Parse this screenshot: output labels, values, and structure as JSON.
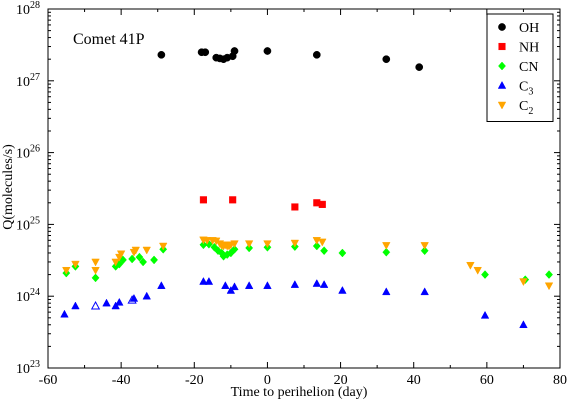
{
  "chart_data": {
    "type": "scatter",
    "title": "Comet 41P",
    "xlabel": "Time to perihelion (day)",
    "ylabel": "Q(molecules/s)",
    "xlim": [
      -60,
      80
    ],
    "ylim": [
      1e+23,
      1e+28
    ],
    "yscale": "log",
    "x_ticks": [
      -60,
      -40,
      -20,
      0,
      20,
      40,
      60,
      80
    ],
    "y_tick_exponents": [
      23,
      24,
      25,
      26,
      27,
      28
    ],
    "legend_position": "top-right",
    "series": [
      {
        "name": "OH",
        "subscript": "",
        "marker": "circle",
        "color": "#000000",
        "points": [
          {
            "x": -29,
            "y": 2.3e+27
          },
          {
            "x": -18,
            "y": 2.5e+27
          },
          {
            "x": -17,
            "y": 2.5e+27
          },
          {
            "x": -14,
            "y": 2.1e+27
          },
          {
            "x": -13,
            "y": 2.05e+27
          },
          {
            "x": -12,
            "y": 2e+27
          },
          {
            "x": -11,
            "y": 2.1e+27
          },
          {
            "x": -9.5,
            "y": 2.2e+27
          },
          {
            "x": -9,
            "y": 2.6e+27
          },
          {
            "x": 0,
            "y": 2.6e+27
          },
          {
            "x": 13.5,
            "y": 2.3e+27
          },
          {
            "x": 32.5,
            "y": 2e+27
          },
          {
            "x": 41.5,
            "y": 1.55e+27
          }
        ]
      },
      {
        "name": "NH",
        "subscript": "",
        "marker": "square",
        "color": "#ff0000",
        "points": [
          {
            "x": -17.5,
            "y": 2.2e+25
          },
          {
            "x": -9.5,
            "y": 2.2e+25
          },
          {
            "x": 7.5,
            "y": 1.75e+25
          },
          {
            "x": 13.5,
            "y": 2e+25
          },
          {
            "x": 15.0,
            "y": 1.9e+25
          }
        ]
      },
      {
        "name": "CN",
        "subscript": "",
        "marker": "diamond",
        "color": "#00ff00",
        "points": [
          {
            "x": -55,
            "y": 2.1e+24
          },
          {
            "x": -52.5,
            "y": 2.6e+24
          },
          {
            "x": -47,
            "y": 1.8e+24
          },
          {
            "x": -41.5,
            "y": 2.6e+24
          },
          {
            "x": -40.5,
            "y": 2.8e+24
          },
          {
            "x": -39.5,
            "y": 3.2e+24
          },
          {
            "x": -37,
            "y": 3.3e+24
          },
          {
            "x": -35,
            "y": 3.5e+24
          },
          {
            "x": -34,
            "y": 3e+24
          },
          {
            "x": -31,
            "y": 3.2e+24
          },
          {
            "x": -28.5,
            "y": 4.5e+24
          },
          {
            "x": -17.5,
            "y": 5.2e+24
          },
          {
            "x": -16,
            "y": 5.3e+24
          },
          {
            "x": -14.5,
            "y": 4.8e+24
          },
          {
            "x": -13.5,
            "y": 4.3e+24
          },
          {
            "x": -12.5,
            "y": 4e+24
          },
          {
            "x": -12,
            "y": 3.6e+24
          },
          {
            "x": -11,
            "y": 3.8e+24
          },
          {
            "x": -10,
            "y": 4e+24
          },
          {
            "x": -9,
            "y": 4.5e+24
          },
          {
            "x": -5,
            "y": 4.7e+24
          },
          {
            "x": 0,
            "y": 4.8e+24
          },
          {
            "x": 7.5,
            "y": 4.9e+24
          },
          {
            "x": 13.5,
            "y": 5e+24
          },
          {
            "x": 15.5,
            "y": 4.3e+24
          },
          {
            "x": 20.5,
            "y": 4e+24
          },
          {
            "x": 32.5,
            "y": 4.1e+24
          },
          {
            "x": 43,
            "y": 4.3e+24
          },
          {
            "x": 59.5,
            "y": 2e+24
          },
          {
            "x": 70.5,
            "y": 1.7e+24
          },
          {
            "x": 77,
            "y": 2e+24
          }
        ]
      },
      {
        "name": "C",
        "subscript": "3",
        "marker": "triangle-up",
        "color": "#0000ff",
        "points": [
          {
            "x": -55.5,
            "y": 5.6e+23,
            "filled": true
          },
          {
            "x": -52.5,
            "y": 7.3e+23,
            "filled": true
          },
          {
            "x": -47,
            "y": 7.3e+23,
            "filled": false
          },
          {
            "x": -44,
            "y": 8e+23,
            "filled": true
          },
          {
            "x": -41.5,
            "y": 7.3e+23,
            "filled": true
          },
          {
            "x": -40.5,
            "y": 8.2e+23,
            "filled": true
          },
          {
            "x": -37,
            "y": 8.8e+23,
            "filled": false
          },
          {
            "x": -36.5,
            "y": 9.3e+23,
            "filled": true
          },
          {
            "x": -33,
            "y": 1e+24,
            "filled": true
          },
          {
            "x": -29,
            "y": 1.4e+24,
            "filled": true
          },
          {
            "x": -17.5,
            "y": 1.6e+24,
            "filled": true
          },
          {
            "x": -16,
            "y": 1.6e+24,
            "filled": true
          },
          {
            "x": -11.5,
            "y": 1.4e+24,
            "filled": true
          },
          {
            "x": -10,
            "y": 1.2e+24,
            "filled": true
          },
          {
            "x": -9,
            "y": 1.35e+24,
            "filled": true
          },
          {
            "x": -5,
            "y": 1.4e+24,
            "filled": true
          },
          {
            "x": 0,
            "y": 1.4e+24,
            "filled": true
          },
          {
            "x": 7.5,
            "y": 1.45e+24,
            "filled": true
          },
          {
            "x": 13.5,
            "y": 1.5e+24,
            "filled": true
          },
          {
            "x": 15.5,
            "y": 1.45e+24,
            "filled": true
          },
          {
            "x": 20.5,
            "y": 1.2e+24,
            "filled": true
          },
          {
            "x": 32.5,
            "y": 1.15e+24,
            "filled": true
          },
          {
            "x": 43,
            "y": 1.15e+24,
            "filled": true
          },
          {
            "x": 59.5,
            "y": 5.4e+23,
            "filled": true
          },
          {
            "x": 70,
            "y": 4e+23,
            "filled": true
          }
        ]
      },
      {
        "name": "C",
        "subscript": "2",
        "marker": "triangle-down",
        "color": "#ffa500",
        "points": [
          {
            "x": -55,
            "y": 2.3e+24
          },
          {
            "x": -52.5,
            "y": 2.8e+24
          },
          {
            "x": -47,
            "y": 3e+24
          },
          {
            "x": -47,
            "y": 2.3e+24
          },
          {
            "x": -41.5,
            "y": 3e+24
          },
          {
            "x": -40.5,
            "y": 3.5e+24
          },
          {
            "x": -40,
            "y": 3.9e+24
          },
          {
            "x": -36.5,
            "y": 4.1e+24
          },
          {
            "x": -36,
            "y": 4.4e+24
          },
          {
            "x": -33,
            "y": 4.4e+24
          },
          {
            "x": -28.5,
            "y": 5e+24
          },
          {
            "x": -17.5,
            "y": 6.1e+24
          },
          {
            "x": -16.5,
            "y": 6e+24
          },
          {
            "x": -15,
            "y": 6e+24
          },
          {
            "x": -14,
            "y": 5.9e+24
          },
          {
            "x": -13,
            "y": 5.4e+24
          },
          {
            "x": -12.5,
            "y": 5.1e+24
          },
          {
            "x": -12,
            "y": 5e+24
          },
          {
            "x": -11.5,
            "y": 5.2e+24
          },
          {
            "x": -11,
            "y": 5e+24
          },
          {
            "x": -10.5,
            "y": 5e+24
          },
          {
            "x": -10,
            "y": 5.2e+24
          },
          {
            "x": -9,
            "y": 5.4e+24
          },
          {
            "x": -5,
            "y": 5.4e+24
          },
          {
            "x": 0,
            "y": 5.4e+24
          },
          {
            "x": 7.5,
            "y": 5.5e+24
          },
          {
            "x": 13.5,
            "y": 6e+24
          },
          {
            "x": 15,
            "y": 5.7e+24
          },
          {
            "x": 32.5,
            "y": 5.1e+24
          },
          {
            "x": 43,
            "y": 5.1e+24
          },
          {
            "x": 55.5,
            "y": 2.7e+24
          },
          {
            "x": 57.5,
            "y": 2.3e+24
          },
          {
            "x": 70,
            "y": 1.6e+24
          },
          {
            "x": 77,
            "y": 1.4e+24
          }
        ]
      }
    ]
  }
}
